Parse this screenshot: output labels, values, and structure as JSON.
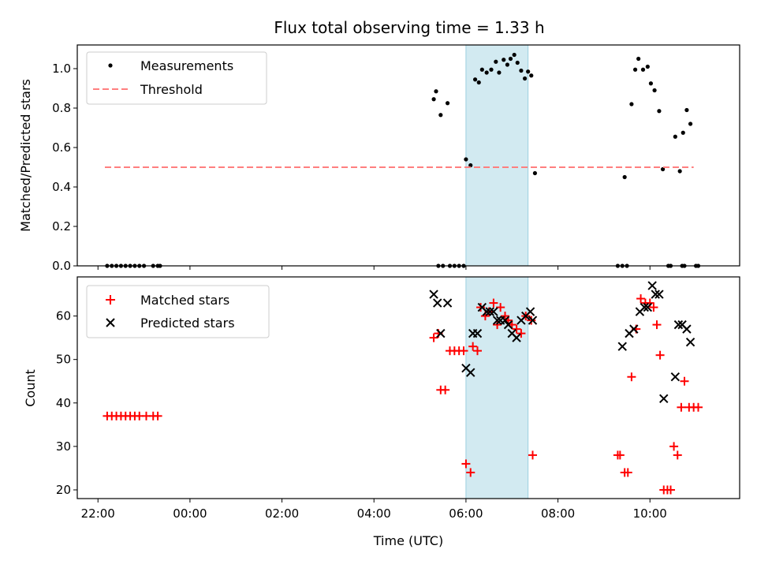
{
  "chart_data": [
    {
      "type": "scatter",
      "title": "Flux total observing time = 1.33 h",
      "xlabel": "",
      "ylabel": "Matched/Predicted stars",
      "xlim_hours": [
        -2.45,
        11.95
      ],
      "ylim": [
        0,
        1.12
      ],
      "yticks": [
        0.0,
        0.2,
        0.4,
        0.6,
        0.8,
        1.0
      ],
      "ytick_labels": [
        "0.0",
        "0.2",
        "0.4",
        "0.6",
        "0.8",
        "1.0"
      ],
      "shaded_span": {
        "from_hours": 6.0,
        "to_hours": 7.35,
        "color": "#add8e6"
      },
      "legend": {
        "placement": "upper-left",
        "entries": [
          "Measurements",
          "Threshold"
        ]
      },
      "series": [
        {
          "name": "Measurements",
          "marker": "dot",
          "color": "#000000",
          "points": [
            [
              -1.8,
              0
            ],
            [
              -1.7,
              0
            ],
            [
              -1.6,
              0
            ],
            [
              -1.5,
              0
            ],
            [
              -1.4,
              0
            ],
            [
              -1.3,
              0
            ],
            [
              -1.2,
              0
            ],
            [
              -1.1,
              0
            ],
            [
              -1.0,
              0
            ],
            [
              -0.8,
              0
            ],
            [
              -0.7,
              0
            ],
            [
              -0.65,
              0
            ],
            [
              5.3,
              0.845
            ],
            [
              5.35,
              0.885
            ],
            [
              5.45,
              0.765
            ],
            [
              5.6,
              0.825
            ],
            [
              5.4,
              0
            ],
            [
              5.5,
              0
            ],
            [
              5.65,
              0
            ],
            [
              5.75,
              0
            ],
            [
              5.85,
              0
            ],
            [
              5.95,
              0
            ],
            [
              6.0,
              0.54
            ],
            [
              6.1,
              0.51
            ],
            [
              6.2,
              0.945
            ],
            [
              6.28,
              0.93
            ],
            [
              6.35,
              0.995
            ],
            [
              6.45,
              0.98
            ],
            [
              6.55,
              0.995
            ],
            [
              6.65,
              1.035
            ],
            [
              6.72,
              0.98
            ],
            [
              6.82,
              1.045
            ],
            [
              6.9,
              1.02
            ],
            [
              6.97,
              1.05
            ],
            [
              7.05,
              1.07
            ],
            [
              7.12,
              1.03
            ],
            [
              7.2,
              0.99
            ],
            [
              7.28,
              0.95
            ],
            [
              7.35,
              0.985
            ],
            [
              7.42,
              0.965
            ],
            [
              7.5,
              0.47
            ],
            [
              9.3,
              0
            ],
            [
              9.4,
              0
            ],
            [
              9.5,
              0
            ],
            [
              9.45,
              0.45
            ],
            [
              9.6,
              0.82
            ],
            [
              9.68,
              0.995
            ],
            [
              9.75,
              1.05
            ],
            [
              9.85,
              0.995
            ],
            [
              9.95,
              1.01
            ],
            [
              10.02,
              0.925
            ],
            [
              10.1,
              0.89
            ],
            [
              10.2,
              0.785
            ],
            [
              10.28,
              0.49
            ],
            [
              10.55,
              0.655
            ],
            [
              10.65,
              0.48
            ],
            [
              10.72,
              0.675
            ],
            [
              10.8,
              0.79
            ],
            [
              10.88,
              0.72
            ],
            [
              10.4,
              0
            ],
            [
              10.45,
              0
            ],
            [
              10.7,
              0
            ],
            [
              10.75,
              0
            ],
            [
              11.0,
              0
            ],
            [
              11.05,
              0
            ]
          ]
        },
        {
          "name": "Threshold",
          "marker": "dashed-line",
          "color": "#ff7f7f",
          "points": [
            [
              -1.85,
              0.5
            ],
            [
              10.95,
              0.5
            ]
          ]
        }
      ]
    },
    {
      "type": "scatter",
      "title": "",
      "xlabel": "Time (UTC)",
      "ylabel": "Count",
      "xlim_hours": [
        -2.45,
        11.95
      ],
      "ylim": [
        18,
        69
      ],
      "yticks": [
        20,
        30,
        40,
        50,
        60
      ],
      "ytick_labels": [
        "20",
        "30",
        "40",
        "50",
        "60"
      ],
      "xticks_hours": [
        -2,
        0,
        2,
        4,
        6,
        8,
        10
      ],
      "xtick_labels": [
        "22:00",
        "00:00",
        "02:00",
        "04:00",
        "06:00",
        "08:00",
        "10:00"
      ],
      "shaded_span": {
        "from_hours": 6.0,
        "to_hours": 7.35,
        "color": "#add8e6"
      },
      "legend": {
        "placement": "upper-left",
        "entries": [
          "Matched stars",
          "Predicted stars"
        ]
      },
      "series": [
        {
          "name": "Matched stars",
          "marker": "plus",
          "color": "#ff0000",
          "points": [
            [
              -1.8,
              37
            ],
            [
              -1.7,
              37
            ],
            [
              -1.6,
              37
            ],
            [
              -1.5,
              37
            ],
            [
              -1.4,
              37
            ],
            [
              -1.3,
              37
            ],
            [
              -1.2,
              37
            ],
            [
              -1.1,
              37
            ],
            [
              -0.95,
              37
            ],
            [
              -0.8,
              37
            ],
            [
              -0.7,
              37
            ],
            [
              5.3,
              55
            ],
            [
              5.4,
              56
            ],
            [
              5.45,
              43
            ],
            [
              5.55,
              43
            ],
            [
              5.65,
              52
            ],
            [
              5.75,
              52
            ],
            [
              5.85,
              52
            ],
            [
              5.95,
              52
            ],
            [
              6.0,
              26
            ],
            [
              6.1,
              24
            ],
            [
              6.15,
              53
            ],
            [
              6.25,
              52
            ],
            [
              6.32,
              62
            ],
            [
              6.42,
              60
            ],
            [
              6.5,
              61
            ],
            [
              6.6,
              63
            ],
            [
              6.68,
              58
            ],
            [
              6.75,
              62
            ],
            [
              6.85,
              60
            ],
            [
              6.92,
              59
            ],
            [
              7.0,
              58
            ],
            [
              7.1,
              57
            ],
            [
              7.2,
              56
            ],
            [
              7.3,
              60
            ],
            [
              7.42,
              59
            ],
            [
              7.45,
              28
            ],
            [
              9.3,
              28
            ],
            [
              9.35,
              28
            ],
            [
              9.45,
              24
            ],
            [
              9.52,
              24
            ],
            [
              9.6,
              46
            ],
            [
              9.7,
              57
            ],
            [
              9.8,
              64
            ],
            [
              9.9,
              63
            ],
            [
              10.0,
              63
            ],
            [
              10.08,
              62
            ],
            [
              10.15,
              58
            ],
            [
              10.22,
              51
            ],
            [
              10.3,
              20
            ],
            [
              10.38,
              20
            ],
            [
              10.45,
              20
            ],
            [
              10.52,
              30
            ],
            [
              10.6,
              28
            ],
            [
              10.68,
              39
            ],
            [
              10.75,
              45
            ],
            [
              10.85,
              39
            ],
            [
              10.95,
              39
            ],
            [
              11.05,
              39
            ]
          ]
        },
        {
          "name": "Predicted stars",
          "marker": "x",
          "color": "#000000",
          "points": [
            [
              5.3,
              65
            ],
            [
              5.38,
              63
            ],
            [
              5.45,
              56
            ],
            [
              5.6,
              63
            ],
            [
              6.0,
              48
            ],
            [
              6.1,
              47
            ],
            [
              6.15,
              56
            ],
            [
              6.25,
              56
            ],
            [
              6.35,
              62
            ],
            [
              6.45,
              61
            ],
            [
              6.52,
              61
            ],
            [
              6.6,
              61
            ],
            [
              6.68,
              59
            ],
            [
              6.75,
              59
            ],
            [
              6.85,
              59
            ],
            [
              6.92,
              58
            ],
            [
              7.0,
              56
            ],
            [
              7.1,
              55
            ],
            [
              7.2,
              59
            ],
            [
              7.3,
              60
            ],
            [
              7.4,
              61
            ],
            [
              7.45,
              59
            ],
            [
              9.4,
              53
            ],
            [
              9.55,
              56
            ],
            [
              9.65,
              57
            ],
            [
              9.78,
              61
            ],
            [
              9.88,
              62
            ],
            [
              9.95,
              62
            ],
            [
              10.05,
              67
            ],
            [
              10.12,
              65
            ],
            [
              10.2,
              65
            ],
            [
              10.3,
              41
            ],
            [
              10.55,
              46
            ],
            [
              10.62,
              58
            ],
            [
              10.7,
              58
            ],
            [
              10.8,
              57
            ],
            [
              10.88,
              54
            ]
          ]
        }
      ]
    }
  ]
}
